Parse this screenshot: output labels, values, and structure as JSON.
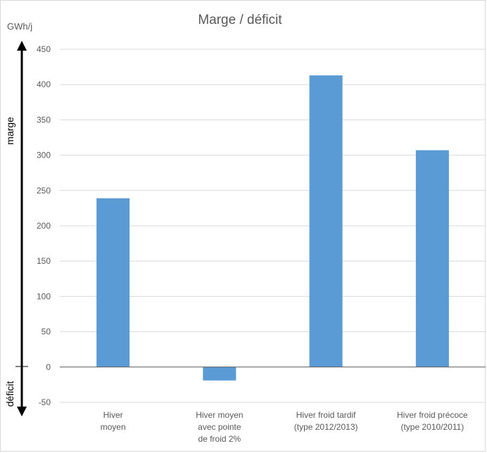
{
  "chart_data": {
    "type": "bar",
    "title": "Marge / déficit",
    "unit_label": "GWh/j",
    "categories": [
      [
        "Hiver",
        "moyen"
      ],
      [
        "Hiver moyen",
        "avec pointe",
        "de froid 2%"
      ],
      [
        "Hiver froid tardif",
        "(type 2012/2013)"
      ],
      [
        "Hiver froid précoce",
        "(type 2010/2011)"
      ]
    ],
    "values": [
      239,
      -19,
      413,
      307
    ],
    "ylim": [
      -50,
      450
    ],
    "yticks": [
      -50,
      0,
      50,
      100,
      150,
      200,
      250,
      300,
      350,
      400,
      450
    ],
    "grid": true,
    "bar_color": "#5b9bd5",
    "side_labels": {
      "top": "marge",
      "bottom": "déficit"
    }
  }
}
